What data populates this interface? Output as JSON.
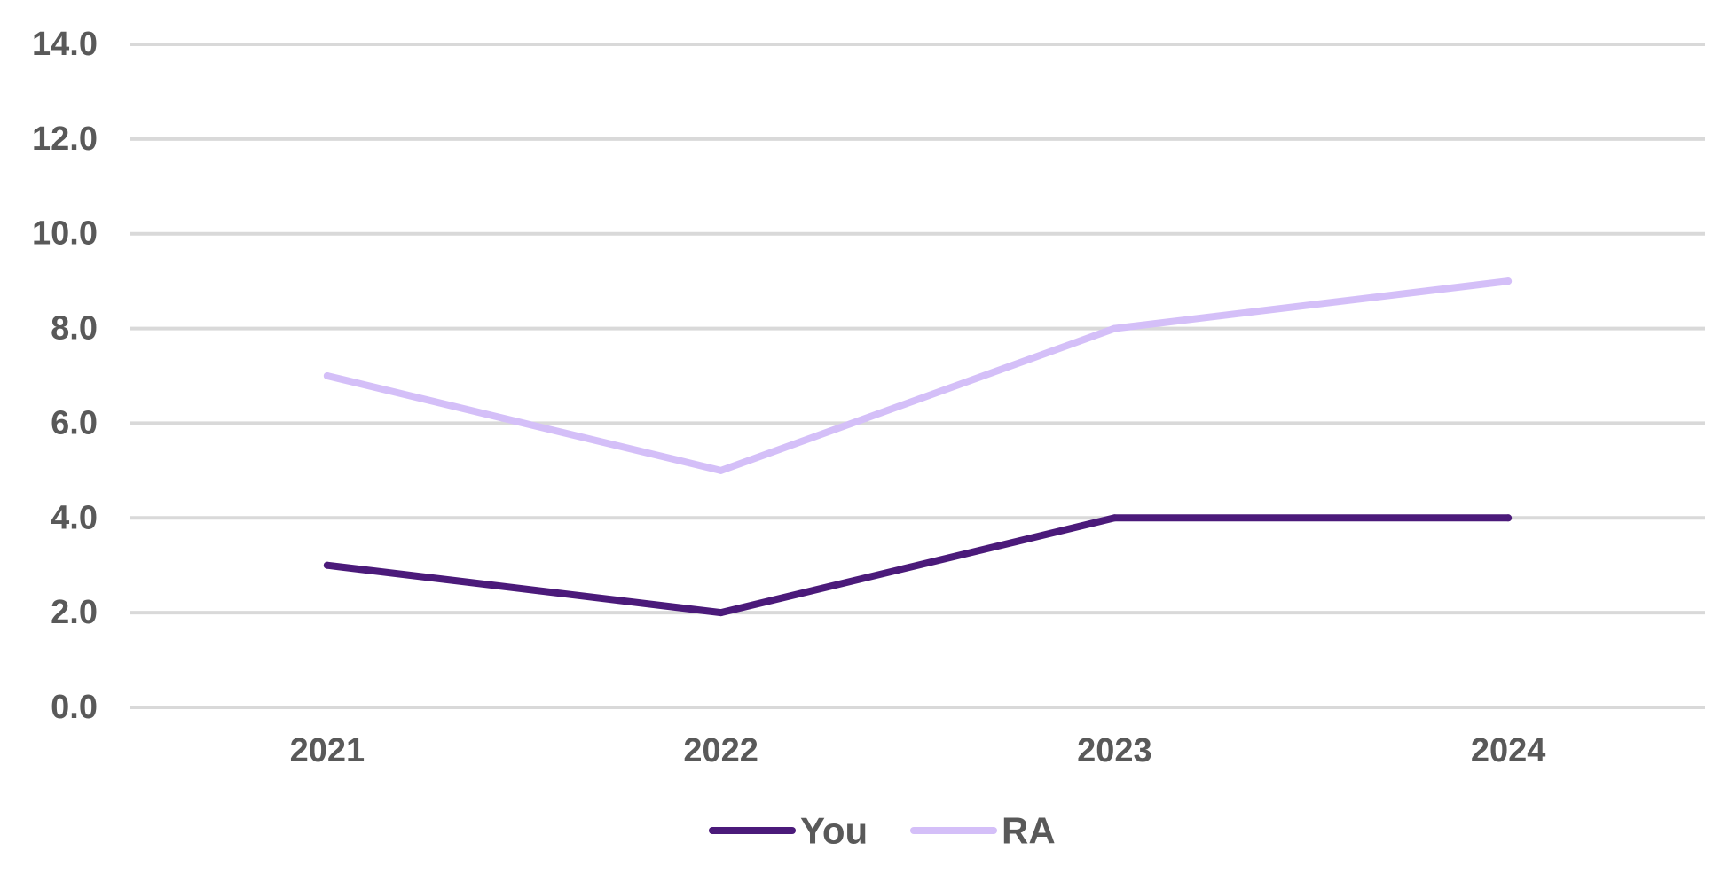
{
  "chart_data": {
    "type": "line",
    "title": "",
    "xlabel": "",
    "ylabel": "",
    "categories": [
      "2021",
      "2022",
      "2023",
      "2024"
    ],
    "series": [
      {
        "name": "You",
        "values": [
          3,
          2,
          4,
          4
        ],
        "color": "#4b1a7a"
      },
      {
        "name": "RA",
        "values": [
          7,
          5,
          8,
          9
        ],
        "color": "#d4bff8"
      }
    ],
    "ylim": [
      0,
      14
    ],
    "yticks": [
      "0.0",
      "2.0",
      "4.0",
      "6.0",
      "8.0",
      "10.0",
      "12.0",
      "14.0"
    ],
    "grid": true,
    "legend_position": "bottom-center",
    "gridline_color": "#d9d9d9",
    "text_color": "#595959"
  }
}
